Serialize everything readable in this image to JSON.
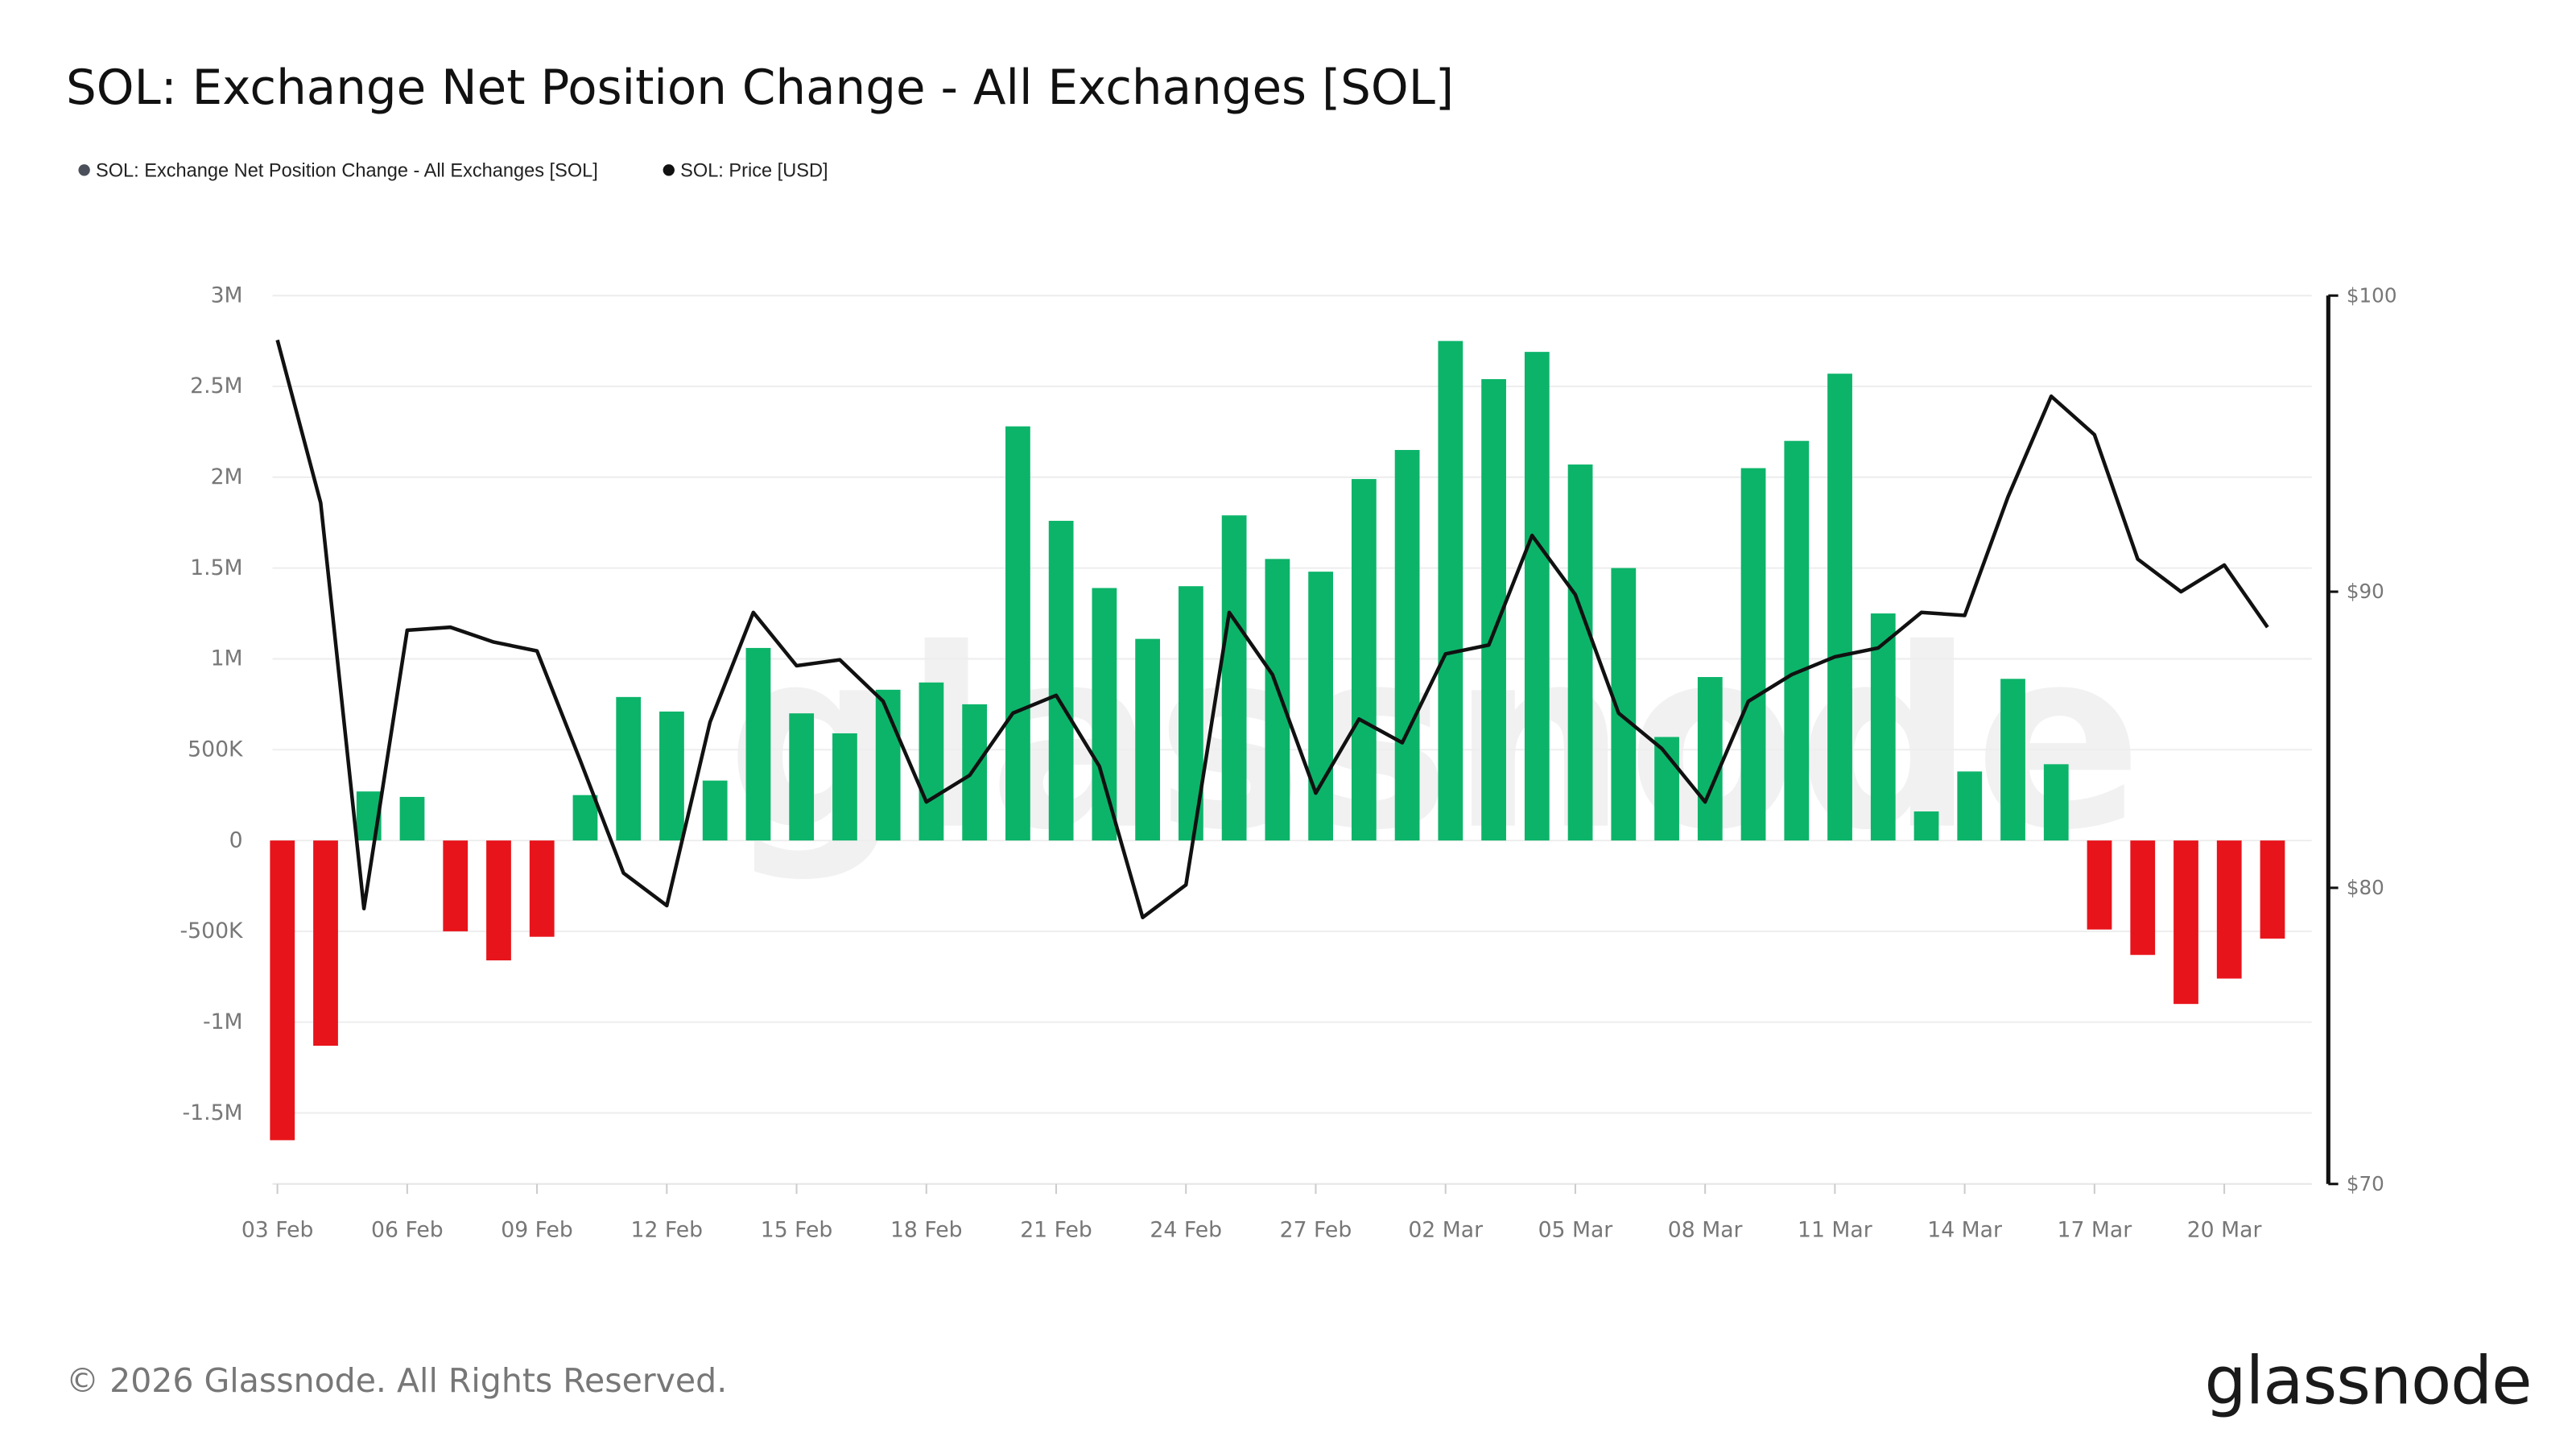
{
  "title": "SOL: Exchange Net Position Change - All Exchanges [SOL]",
  "footer": "© 2026 Glassnode. All Rights Reserved.",
  "logo": "glassnode",
  "watermark": "glassnode",
  "chart_data": {
    "type": "bar+line",
    "title": "SOL: Exchange Net Position Change - All Exchanges [SOL]",
    "legend": {
      "placement": "top-left",
      "entries": [
        "SOL: Exchange Net Position Change - All Exchanges [SOL]",
        "SOL: Price [USD]"
      ]
    },
    "colors": {
      "positive": "#0cb46a",
      "negative": "#e8141b",
      "price": "#111111",
      "legend_bar_dot": "#4a4f5a"
    },
    "grid": true,
    "x_tick_labels": [
      "03 Feb",
      "06 Feb",
      "09 Feb",
      "12 Feb",
      "15 Feb",
      "18 Feb",
      "21 Feb",
      "24 Feb",
      "27 Feb",
      "02 Mar",
      "05 Mar",
      "08 Mar",
      "11 Mar",
      "14 Mar",
      "17 Mar",
      "20 Mar"
    ],
    "y_left": {
      "ticks": [
        "3M",
        "2.5M",
        "2M",
        "1.5M",
        "1M",
        "500K",
        "0",
        "-500K",
        "-1M",
        "-1.5M"
      ],
      "range": [
        -1.9,
        3.0
      ],
      "unit": "M SOL"
    },
    "y_right": {
      "ticks": [
        "$100",
        "$90",
        "$80",
        "$70"
      ],
      "range": [
        70,
        100
      ]
    },
    "x": [
      "03 Feb",
      "04 Feb",
      "05 Feb",
      "06 Feb",
      "07 Feb",
      "08 Feb",
      "09 Feb",
      "10 Feb",
      "11 Feb",
      "12 Feb",
      "13 Feb",
      "14 Feb",
      "15 Feb",
      "16 Feb",
      "17 Feb",
      "18 Feb",
      "19 Feb",
      "20 Feb",
      "21 Feb",
      "22 Feb",
      "23 Feb",
      "24 Feb",
      "25 Feb",
      "26 Feb",
      "27 Feb",
      "28 Feb",
      "01 Mar",
      "02 Mar",
      "03 Mar",
      "04 Mar",
      "05 Mar",
      "06 Mar",
      "07 Mar",
      "08 Mar",
      "09 Mar",
      "10 Mar",
      "11 Mar",
      "12 Mar",
      "13 Mar",
      "14 Mar",
      "15 Mar",
      "16 Mar",
      "17 Mar",
      "18 Mar",
      "19 Mar",
      "20 Mar",
      "21 Mar"
    ],
    "series": [
      {
        "name": "SOL: Exchange Net Position Change - All Exchanges [SOL]",
        "type": "bar",
        "axis": "left",
        "values": [
          -1.65,
          -1.13,
          0.27,
          0.24,
          -0.5,
          -0.66,
          -0.53,
          0.25,
          0.79,
          0.71,
          0.33,
          1.06,
          0.7,
          0.59,
          0.83,
          0.87,
          0.75,
          2.28,
          1.76,
          1.39,
          1.11,
          1.4,
          1.79,
          1.55,
          1.48,
          1.99,
          2.15,
          2.75,
          2.54,
          2.69,
          2.07,
          1.5,
          0.57,
          0.9,
          2.05,
          2.2,
          2.57,
          1.25,
          0.16,
          0.38,
          0.89,
          0.42,
          -0.49,
          -0.63,
          -0.9,
          -0.76,
          -0.54
        ]
      },
      {
        "name": "SOL: Price [USD]",
        "type": "line",
        "axis": "right",
        "values": [
          98.5,
          93.0,
          79.3,
          88.7,
          88.8,
          88.3,
          88.0,
          84.3,
          80.5,
          79.4,
          85.6,
          89.3,
          87.5,
          87.7,
          86.3,
          82.9,
          83.8,
          85.9,
          86.5,
          84.1,
          79.0,
          80.1,
          89.3,
          87.2,
          83.2,
          85.7,
          84.9,
          87.9,
          88.2,
          91.9,
          89.9,
          85.9,
          84.7,
          82.9,
          86.3,
          87.2,
          87.8,
          88.1,
          89.3,
          89.2,
          93.2,
          96.6,
          95.3,
          91.1,
          90.0,
          90.9,
          88.8
        ]
      }
    ]
  }
}
